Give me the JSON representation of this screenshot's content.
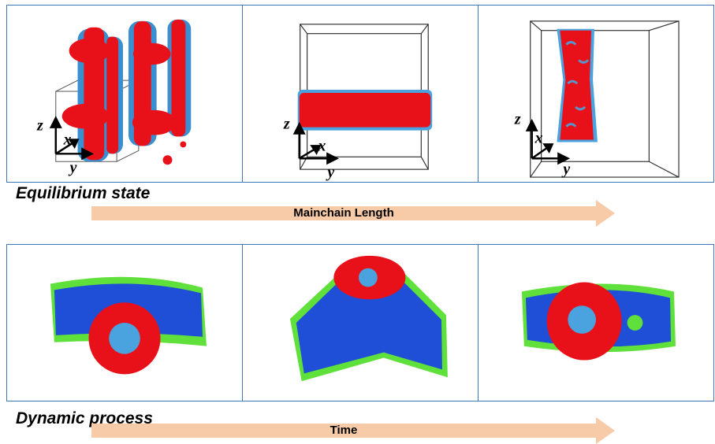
{
  "colors": {
    "panel_border": "#3b78b8",
    "red_bead": "#e8111a",
    "light_blue_bead": "#4aa3df",
    "dark_blue_bead": "#1f4fd6",
    "green_bead": "#5fe03a",
    "arrow_fill": "#f7caa8"
  },
  "top_row": {
    "axes": [
      "z",
      "x",
      "y"
    ],
    "section_label": "Equilibrium state",
    "arrow_label": "Mainchain Length"
  },
  "bottom_row": {
    "section_label": "Dynamic process",
    "arrow_label": "Time"
  }
}
